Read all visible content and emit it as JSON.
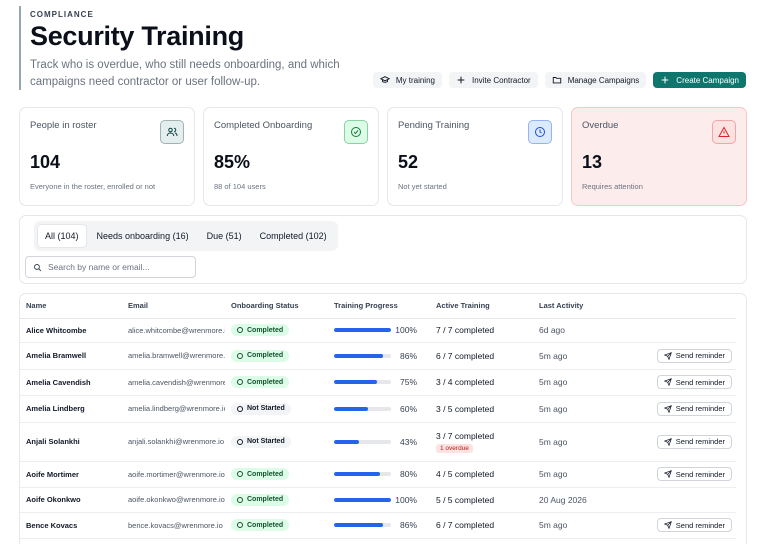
{
  "header": {
    "eyebrow": "COMPLIANCE",
    "title": "Security Training",
    "subtitle": "Track who is overdue, who still needs onboarding, and which campaigns need contractor or user follow-up."
  },
  "actions": {
    "my_training": "My training",
    "invite_contractor": "Invite Contractor",
    "manage_campaigns": "Manage Campaigns",
    "create_campaign": "Create Campaign"
  },
  "cards": [
    {
      "label": "People in roster",
      "value": "104",
      "note": "Everyone in the roster, enrolled or not",
      "icon": "users-icon"
    },
    {
      "label": "Completed Onboarding",
      "value": "85%",
      "note": "88 of 104 users",
      "icon": "check-circle-icon"
    },
    {
      "label": "Pending Training",
      "value": "52",
      "note": "Not yet started",
      "icon": "clock-icon"
    },
    {
      "label": "Overdue",
      "value": "13",
      "note": "Requires attention",
      "icon": "warning-icon"
    }
  ],
  "colors": {
    "accent": "#0f766e",
    "progress": "#2563eb",
    "overdue_bg": "#fdecec",
    "completed_badge": "#dcfce7"
  },
  "filters": {
    "tabs": [
      "All (104)",
      "Needs onboarding (16)",
      "Due (51)",
      "Completed (102)"
    ],
    "active_tab": 0,
    "search_placeholder": "Search by name or email..."
  },
  "table": {
    "columns": [
      "Name",
      "Email",
      "Onboarding Status",
      "Training Progress",
      "Active Training",
      "Last Activity"
    ],
    "reminder_label": "Send reminder",
    "rows": [
      {
        "name": "Alice Whitcombe",
        "email": "alice.whitcombe@wrenmore.io",
        "status": "Completed",
        "progress": 100,
        "progress_label": "100%",
        "active": "7 / 7 completed",
        "overdue": "",
        "last": "6d ago",
        "reminder": false
      },
      {
        "name": "Amelia Bramwell",
        "email": "amelia.bramwell@wrenmore.io",
        "status": "Completed",
        "progress": 86,
        "progress_label": "86%",
        "active": "6 / 7 completed",
        "overdue": "",
        "last": "5m ago",
        "reminder": true
      },
      {
        "name": "Amelia Cavendish",
        "email": "amelia.cavendish@wrenmore.io",
        "status": "Completed",
        "progress": 75,
        "progress_label": "75%",
        "active": "3 / 4 completed",
        "overdue": "",
        "last": "5m ago",
        "reminder": true
      },
      {
        "name": "Amelia Lindberg",
        "email": "amelia.lindberg@wrenmore.io",
        "status": "Not Started",
        "progress": 60,
        "progress_label": "60%",
        "active": "3 / 5 completed",
        "overdue": "",
        "last": "5m ago",
        "reminder": true
      },
      {
        "name": "Anjali Solankhi",
        "email": "anjali.solankhi@wrenmore.io",
        "status": "Not Started",
        "progress": 43,
        "progress_label": "43%",
        "active": "3 / 7 completed",
        "overdue": "1 overdue",
        "last": "5m ago",
        "reminder": true
      },
      {
        "name": "Aoife Mortimer",
        "email": "aoife.mortimer@wrenmore.io",
        "status": "Completed",
        "progress": 80,
        "progress_label": "80%",
        "active": "4 / 5 completed",
        "overdue": "",
        "last": "5m ago",
        "reminder": true
      },
      {
        "name": "Aoife Okonkwo",
        "email": "aoife.okonkwo@wrenmore.io",
        "status": "Completed",
        "progress": 100,
        "progress_label": "100%",
        "active": "5 / 5 completed",
        "overdue": "",
        "last": "20 Aug 2026",
        "reminder": false
      },
      {
        "name": "Bence Kovacs",
        "email": "bence.kovacs@wrenmore.io",
        "status": "Completed",
        "progress": 86,
        "progress_label": "86%",
        "active": "6 / 7 completed",
        "overdue": "",
        "last": "5m ago",
        "reminder": true
      }
    ]
  }
}
